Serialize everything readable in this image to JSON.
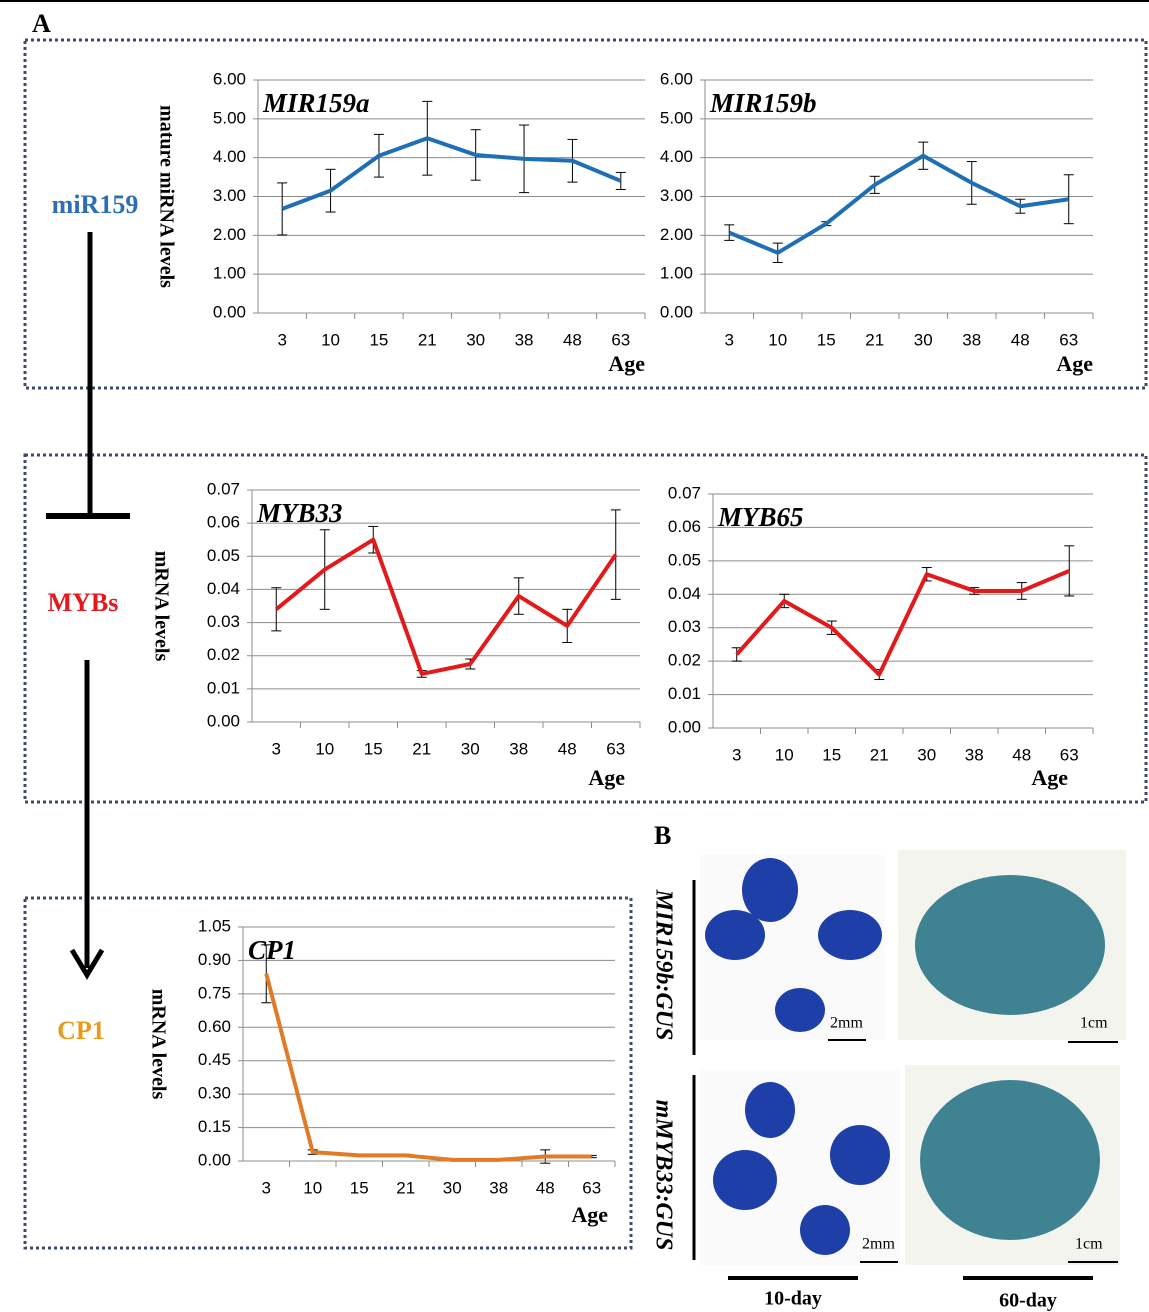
{
  "labels": {
    "panel_a": "A",
    "panel_b": "B",
    "mir159": "miR159",
    "mybs": "MYBs",
    "cp1": "CP1"
  },
  "images": {
    "rows": [
      "MIR159b:GUS",
      "mMYB33:GUS"
    ],
    "columns": [
      "10-day",
      "60-day"
    ],
    "scale_bars": [
      "2mm",
      "1cm",
      "2mm",
      "1cm"
    ]
  },
  "chart_data": [
    {
      "type": "line",
      "title": "MIR159a",
      "ylabel": "mature miRNA levels",
      "xlabel": "Age",
      "categories": [
        "3",
        "10",
        "15",
        "21",
        "30",
        "38",
        "48",
        "63"
      ],
      "values": [
        2.68,
        3.15,
        4.05,
        4.5,
        4.07,
        3.97,
        3.92,
        3.4
      ],
      "errors": [
        0.67,
        0.55,
        0.55,
        0.95,
        0.65,
        0.87,
        0.55,
        0.22
      ],
      "color": "#1f6fb5",
      "grid": true,
      "ylim": [
        0,
        6
      ],
      "yticks": [
        {
          "value": 0,
          "label": "0.00"
        },
        {
          "value": 1,
          "label": "1.00"
        },
        {
          "value": 2,
          "label": "2.00"
        },
        {
          "value": 3,
          "label": "3.00"
        },
        {
          "value": 4,
          "label": "4.00"
        },
        {
          "value": 5,
          "label": "5.00"
        },
        {
          "value": 6,
          "label": "6.00"
        }
      ]
    },
    {
      "type": "line",
      "title": "MIR159b",
      "xlabel": "Age",
      "categories": [
        "3",
        "10",
        "15",
        "21",
        "30",
        "38",
        "48",
        "63"
      ],
      "values": [
        2.07,
        1.55,
        2.3,
        3.3,
        4.05,
        3.35,
        2.75,
        2.93
      ],
      "errors": [
        0.2,
        0.25,
        0.05,
        0.22,
        0.35,
        0.55,
        0.18,
        0.63
      ],
      "color": "#1f6fb5",
      "grid": true,
      "ylim": [
        0,
        6
      ],
      "yticks": [
        {
          "value": 0,
          "label": "0.00"
        },
        {
          "value": 1,
          "label": "1.00"
        },
        {
          "value": 2,
          "label": "2.00"
        },
        {
          "value": 3,
          "label": "3.00"
        },
        {
          "value": 4,
          "label": "4.00"
        },
        {
          "value": 5,
          "label": "5.00"
        },
        {
          "value": 6,
          "label": "6.00"
        }
      ]
    },
    {
      "type": "line",
      "title": "MYB33",
      "ylabel": "mRNA levels",
      "xlabel": "Age",
      "categories": [
        "3",
        "10",
        "15",
        "21",
        "30",
        "38",
        "48",
        "63"
      ],
      "values": [
        0.034,
        0.046,
        0.055,
        0.0145,
        0.0175,
        0.038,
        0.029,
        0.0505
      ],
      "errors": [
        0.0065,
        0.012,
        0.004,
        0.001,
        0.0015,
        0.0055,
        0.005,
        0.0135
      ],
      "color": "#e31a1c",
      "grid": true,
      "ylim": [
        0,
        0.07
      ],
      "yticks": [
        {
          "value": 0,
          "label": "0.00"
        },
        {
          "value": 0.01,
          "label": "0.01"
        },
        {
          "value": 0.02,
          "label": "0.02"
        },
        {
          "value": 0.03,
          "label": "0.03"
        },
        {
          "value": 0.04,
          "label": "0.04"
        },
        {
          "value": 0.05,
          "label": "0.05"
        },
        {
          "value": 0.06,
          "label": "0.06"
        },
        {
          "value": 0.07,
          "label": "0.07"
        }
      ]
    },
    {
      "type": "line",
      "title": "MYB65",
      "xlabel": "Age",
      "categories": [
        "3",
        "10",
        "15",
        "21",
        "30",
        "38",
        "48",
        "63"
      ],
      "values": [
        0.022,
        0.038,
        0.03,
        0.016,
        0.046,
        0.041,
        0.041,
        0.047
      ],
      "errors": [
        0.002,
        0.002,
        0.002,
        0.0015,
        0.002,
        0.001,
        0.0025,
        0.0075
      ],
      "color": "#e31a1c",
      "grid": true,
      "ylim": [
        0,
        0.07
      ],
      "yticks": [
        {
          "value": 0,
          "label": "0.00"
        },
        {
          "value": 0.01,
          "label": "0.01"
        },
        {
          "value": 0.02,
          "label": "0.02"
        },
        {
          "value": 0.03,
          "label": "0.03"
        },
        {
          "value": 0.04,
          "label": "0.04"
        },
        {
          "value": 0.05,
          "label": "0.05"
        },
        {
          "value": 0.06,
          "label": "0.06"
        },
        {
          "value": 0.07,
          "label": "0.07"
        }
      ]
    },
    {
      "type": "line",
      "title": "CP1",
      "ylabel": "mRNA levels",
      "xlabel": "Age",
      "categories": [
        "3",
        "10",
        "15",
        "21",
        "30",
        "38",
        "48",
        "63"
      ],
      "values": [
        0.84,
        0.04,
        0.025,
        0.025,
        0.005,
        0.005,
        0.02,
        0.02
      ],
      "errors": [
        0.13,
        0.01,
        0.005,
        0.005,
        0.002,
        0.002,
        0.03,
        0.005
      ],
      "color": "#e07b27",
      "grid": true,
      "ylim": [
        0,
        1.05
      ],
      "yticks": [
        {
          "value": 0,
          "label": "0.00"
        },
        {
          "value": 0.15,
          "label": "0.15"
        },
        {
          "value": 0.3,
          "label": "0.30"
        },
        {
          "value": 0.45,
          "label": "0.45"
        },
        {
          "value": 0.6,
          "label": "0.60"
        },
        {
          "value": 0.75,
          "label": "0.75"
        },
        {
          "value": 0.9,
          "label": "0.90"
        },
        {
          "value": 1.05,
          "label": "1.05"
        }
      ]
    }
  ]
}
